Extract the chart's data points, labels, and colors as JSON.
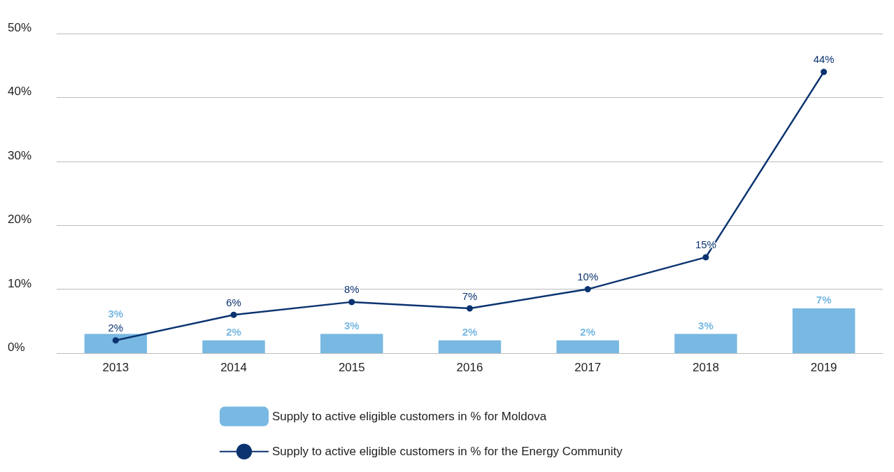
{
  "chart_data": {
    "type": "bar",
    "categories": [
      "2013",
      "2014",
      "2015",
      "2016",
      "2017",
      "2018",
      "2019"
    ],
    "series": [
      {
        "name": "Supply to active eligible customers in % for Moldova",
        "color": "#78b8e2",
        "values": [
          3,
          2,
          3,
          2,
          2,
          3,
          7
        ],
        "value_labels": [
          "3%",
          "2%",
          "3%",
          "2%",
          "2%",
          "3%",
          "7%"
        ]
      },
      {
        "name": "Supply to active eligible customers in % for the Energy Community",
        "type": "line",
        "color": "#0a3370",
        "values": [
          2,
          6,
          8,
          7,
          10,
          15,
          44
        ],
        "value_labels": [
          "2%",
          "6%",
          "8%",
          "7%",
          "10%",
          "15%",
          "44%"
        ]
      }
    ],
    "ylim": [
      0,
      50
    ],
    "yticks": [
      {
        "value": 0,
        "label": "0%"
      },
      {
        "value": 10,
        "label": "10%"
      },
      {
        "value": 20,
        "label": "20%"
      },
      {
        "value": 30,
        "label": "30%"
      },
      {
        "value": 40,
        "label": "40%"
      },
      {
        "value": 50,
        "label": "50%"
      }
    ],
    "grid": "y",
    "legend": "bottom",
    "marker": "circle"
  }
}
